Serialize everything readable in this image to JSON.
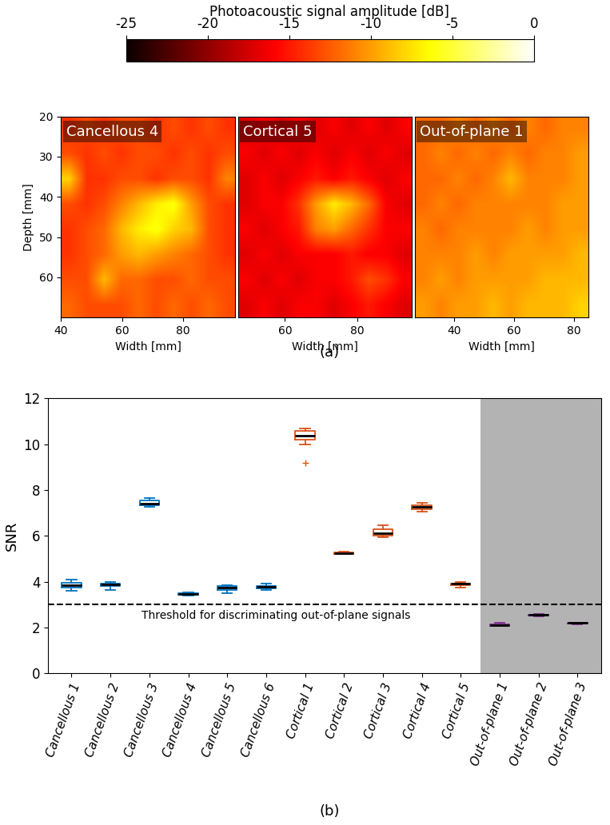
{
  "chart_data": [
    {
      "type": "heatmap",
      "caption": "(a)",
      "colorbar": {
        "label": "Photoacoustic signal amplitude [dB]",
        "range": [
          -25,
          0
        ],
        "ticks": [
          -25,
          -20,
          -15,
          -10,
          -5,
          0
        ]
      },
      "xlabel": "Width [mm]",
      "ylabel": "Depth [mm]",
      "images": [
        {
          "title": "Cancellous 4",
          "xlim": [
            40,
            97
          ],
          "ylim": [
            70,
            20
          ],
          "xticks": [
            40,
            60,
            80
          ],
          "yticks": [
            20,
            30,
            40,
            50,
            60
          ],
          "cells": [
            [
              -14,
              -13,
              -14,
              -13,
              -13,
              -14,
              -13,
              -14,
              -13,
              -14
            ],
            [
              -13,
              -14,
              -13,
              -14,
              -13,
              -13,
              -14,
              -13,
              -14,
              -13
            ],
            [
              -8,
              -14,
              -14,
              -13,
              -13,
              -14,
              -13,
              -13,
              -14,
              -11
            ],
            [
              -13,
              -14,
              -13,
              -11,
              -9,
              -7,
              -6,
              -10,
              -13,
              -14
            ],
            [
              -14,
              -13,
              -12,
              -9,
              -7,
              -6,
              -8,
              -9,
              -13,
              -14
            ],
            [
              -14,
              -13,
              -12,
              -10,
              -9,
              -10,
              -11,
              -12,
              -13,
              -14
            ],
            [
              -13,
              -13,
              -9,
              -12,
              -12,
              -13,
              -13,
              -12,
              -13,
              -13
            ],
            [
              -12,
              -13,
              -13,
              -13,
              -12,
              -13,
              -12,
              -13,
              -12,
              -13
            ]
          ]
        },
        {
          "title": "Cortical 5",
          "xlim": [
            47,
            95
          ],
          "ylim": [
            70,
            20
          ],
          "xticks": [
            60,
            80
          ],
          "yticks": [
            20,
            30,
            40,
            50,
            60
          ],
          "cells": [
            [
              -17,
              -16,
              -17,
              -16,
              -17,
              -16,
              -17,
              -16,
              -17,
              -16
            ],
            [
              -16,
              -17,
              -16,
              -17,
              -16,
              -17,
              -16,
              -17,
              -16,
              -17
            ],
            [
              -17,
              -16,
              -17,
              -16,
              -15,
              -16,
              -15,
              -16,
              -17,
              -16
            ],
            [
              -17,
              -16,
              -16,
              -14,
              -10,
              -7,
              -9,
              -12,
              -16,
              -17
            ],
            [
              -16,
              -17,
              -16,
              -15,
              -11,
              -10,
              -12,
              -14,
              -16,
              -16
            ],
            [
              -17,
              -16,
              -17,
              -16,
              -16,
              -16,
              -15,
              -16,
              -16,
              -17
            ],
            [
              -16,
              -17,
              -16,
              -17,
              -16,
              -16,
              -15,
              -13,
              -14,
              -16
            ],
            [
              -17,
              -16,
              -17,
              -16,
              -16,
              -17,
              -16,
              -15,
              -16,
              -17
            ]
          ]
        },
        {
          "title": "Out-of-plane 1",
          "xlim": [
            27,
            85
          ],
          "ylim": [
            70,
            20
          ],
          "xticks": [
            40,
            60,
            80
          ],
          "yticks": [
            20,
            30,
            40,
            50,
            60
          ],
          "cells": [
            [
              -12,
              -12,
              -11,
              -12,
              -11,
              -12,
              -11,
              -12,
              -11,
              -11
            ],
            [
              -12,
              -11,
              -12,
              -11,
              -12,
              -11,
              -12,
              -11,
              -11,
              -10
            ],
            [
              -12,
              -12,
              -11,
              -12,
              -11,
              -9,
              -11,
              -11,
              -11,
              -10
            ],
            [
              -12,
              -11,
              -12,
              -11,
              -11,
              -11,
              -11,
              -11,
              -10,
              -10
            ],
            [
              -11,
              -12,
              -11,
              -11,
              -11,
              -11,
              -10,
              -11,
              -10,
              -10
            ],
            [
              -11,
              -11,
              -11,
              -10,
              -11,
              -10,
              -10,
              -10,
              -10,
              -9
            ],
            [
              -11,
              -10,
              -11,
              -10,
              -10,
              -10,
              -10,
              -9,
              -9,
              -9
            ],
            [
              -10,
              -11,
              -10,
              -10,
              -9,
              -10,
              -9,
              -9,
              -9,
              -8
            ]
          ]
        }
      ]
    },
    {
      "type": "box",
      "caption": "(b)",
      "ylabel": "SNR",
      "categories": [
        "Cancellous 1",
        "Cancellous 2",
        "Cancellous 3",
        "Cancellous 4",
        "Cancellous 5",
        "Cancellous 6",
        "Cortical 1",
        "Cortical 2",
        "Cortical 3",
        "Cortical 4",
        "Cortical 5",
        "Out-of-plane 1",
        "Out-of-plane 2",
        "Out-of-plane 3"
      ],
      "boxes": [
        {
          "whislo": 3.6,
          "q1": 3.75,
          "med": 3.85,
          "q3": 3.95,
          "whishi": 4.1,
          "fliers": []
        },
        {
          "whislo": 3.65,
          "q1": 3.8,
          "med": 3.88,
          "q3": 3.93,
          "whishi": 4.0,
          "fliers": []
        },
        {
          "whislo": 7.25,
          "q1": 7.33,
          "med": 7.42,
          "q3": 7.55,
          "whishi": 7.65,
          "fliers": []
        },
        {
          "whislo": 3.4,
          "q1": 3.43,
          "med": 3.47,
          "q3": 3.5,
          "whishi": 3.52,
          "fliers": []
        },
        {
          "whislo": 3.5,
          "q1": 3.65,
          "med": 3.73,
          "q3": 3.8,
          "whishi": 3.85,
          "fliers": []
        },
        {
          "whislo": 3.62,
          "q1": 3.7,
          "med": 3.77,
          "q3": 3.82,
          "whishi": 3.9,
          "fliers": []
        },
        {
          "whislo": 10.0,
          "q1": 10.2,
          "med": 10.38,
          "q3": 10.6,
          "whishi": 10.7,
          "fliers": [
            9.2
          ]
        },
        {
          "whislo": 5.2,
          "q1": 5.22,
          "med": 5.25,
          "q3": 5.28,
          "whishi": 5.3,
          "fliers": []
        },
        {
          "whislo": 5.95,
          "q1": 6.0,
          "med": 6.1,
          "q3": 6.3,
          "whishi": 6.45,
          "fliers": []
        },
        {
          "whislo": 7.05,
          "q1": 7.15,
          "med": 7.25,
          "q3": 7.35,
          "whishi": 7.45,
          "fliers": []
        },
        {
          "whislo": 3.75,
          "q1": 3.85,
          "med": 3.9,
          "q3": 3.93,
          "whishi": 3.97,
          "fliers": []
        },
        {
          "whislo": 2.06,
          "q1": 2.08,
          "med": 2.1,
          "q3": 2.12,
          "whishi": 2.2,
          "fliers": []
        },
        {
          "whislo": 2.5,
          "q1": 2.52,
          "med": 2.54,
          "q3": 2.56,
          "whishi": 2.58,
          "fliers": []
        },
        {
          "whislo": 2.15,
          "q1": 2.17,
          "med": 2.19,
          "q3": 2.2,
          "whishi": 2.22,
          "fliers": []
        }
      ],
      "colors": [
        "#0072bd",
        "#0072bd",
        "#0072bd",
        "#0072bd",
        "#0072bd",
        "#0072bd",
        "#d95319",
        "#d95319",
        "#d95319",
        "#d95319",
        "#d95319",
        "#7e2f8e",
        "#7e2f8e",
        "#7e2f8e"
      ],
      "threshold": {
        "value": 3,
        "label": "Threshold for discriminating out-of-plane signals"
      },
      "shaded_from": "Out-of-plane 1",
      "ylim": [
        0,
        12
      ],
      "yticks": [
        0,
        2,
        4,
        6,
        8,
        10,
        12
      ]
    }
  ]
}
